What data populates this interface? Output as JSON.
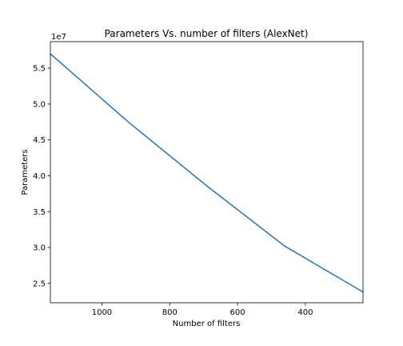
{
  "chart_data": {
    "type": "line",
    "title": "Parameters Vs. number of filters (AlexNet)",
    "xlabel": "Number of filters",
    "ylabel": "Parameters",
    "y_offset_label": "1e7",
    "x_inverted": true,
    "xlim": [
      1152,
      230
    ],
    "ylim": [
      22300000,
      58700000
    ],
    "x_ticks": [
      1000,
      800,
      600,
      400
    ],
    "x_tick_labels": [
      "1000",
      "800",
      "600",
      "400"
    ],
    "y_ticks": [
      25000000,
      30000000,
      35000000,
      40000000,
      45000000,
      50000000,
      55000000
    ],
    "y_tick_labels": [
      "2.5",
      "3.0",
      "3.5",
      "4.0",
      "4.5",
      "5.0",
      "5.5"
    ],
    "grid": false,
    "series": [
      {
        "color": "#1f77b4",
        "x": [
          1152,
          922,
          691,
          461,
          230
        ],
        "y": [
          57000000,
          47500000,
          38600000,
          30200000,
          23800000
        ]
      }
    ]
  }
}
